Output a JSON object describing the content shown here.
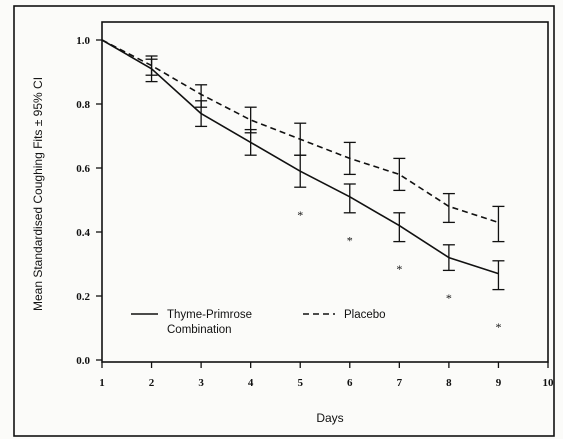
{
  "chart_data": {
    "type": "line",
    "title": "",
    "xlabel": "Days",
    "ylabel": "Mean Standardised Coughing Fits ± 95% CI",
    "xlim": [
      1,
      10
    ],
    "ylim": [
      0.0,
      1.0
    ],
    "x_ticks": [
      1,
      2,
      3,
      4,
      5,
      6,
      7,
      8,
      9,
      10
    ],
    "y_ticks": [
      "0.0",
      "0.2",
      "0.4",
      "0.6",
      "0.8",
      "1.0"
    ],
    "grid": false,
    "legend_position": "bottom-left",
    "series": [
      {
        "name": "Thyme-Primrose Combination",
        "line_style": "solid",
        "x": [
          1,
          2,
          3,
          4,
          5,
          6,
          7,
          8,
          9
        ],
        "y": [
          1.0,
          0.91,
          0.77,
          0.68,
          0.59,
          0.51,
          0.42,
          0.32,
          0.27
        ],
        "ci_low": [
          null,
          0.87,
          0.73,
          0.64,
          0.54,
          0.46,
          0.37,
          0.28,
          0.22
        ],
        "ci_high": [
          null,
          0.94,
          0.81,
          0.72,
          0.64,
          0.55,
          0.46,
          0.36,
          0.31
        ]
      },
      {
        "name": "Placebo",
        "line_style": "dashed",
        "x": [
          1,
          2,
          3,
          4,
          5,
          6,
          7,
          8,
          9
        ],
        "y": [
          1.0,
          0.92,
          0.83,
          0.75,
          0.69,
          0.63,
          0.58,
          0.48,
          0.43
        ],
        "ci_low": [
          null,
          0.89,
          0.79,
          0.71,
          0.64,
          0.58,
          0.53,
          0.43,
          0.37
        ],
        "ci_high": [
          null,
          0.95,
          0.86,
          0.79,
          0.74,
          0.68,
          0.63,
          0.52,
          0.48
        ]
      }
    ],
    "significance_marker": "*",
    "significance_x": [
      5,
      6,
      7,
      8,
      9
    ],
    "significance_y": [
      0.46,
      0.38,
      0.29,
      0.2,
      0.11
    ]
  },
  "colors": {
    "ink": "#111111",
    "background": "#fbfbf9"
  }
}
